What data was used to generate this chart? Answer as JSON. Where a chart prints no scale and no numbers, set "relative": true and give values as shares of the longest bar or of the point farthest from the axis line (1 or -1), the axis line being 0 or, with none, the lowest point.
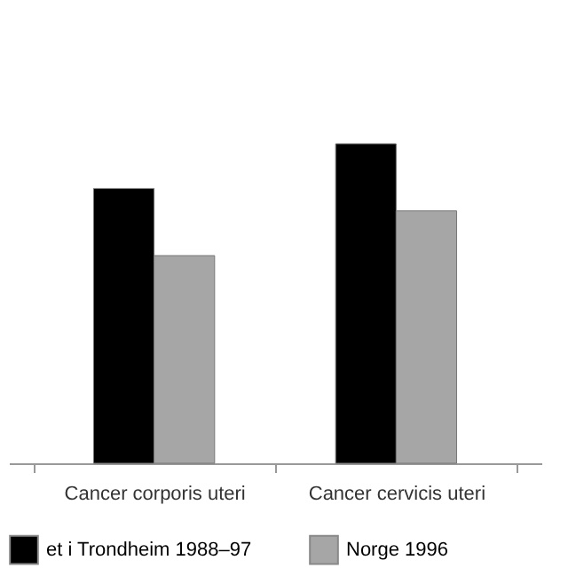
{
  "chart_data": {
    "type": "bar",
    "relative": true,
    "categories": [
      "Cancer corporis uteri",
      "Cancer cervicis uteri"
    ],
    "series": [
      {
        "name": "et i Trondheim 1988–97",
        "color": "#000000",
        "values": [
          0.86,
          1
        ]
      },
      {
        "name": "Norge 1996",
        "color": "#a6a6a6",
        "values": [
          0.65,
          0.79
        ]
      }
    ],
    "legend": "bottom"
  }
}
